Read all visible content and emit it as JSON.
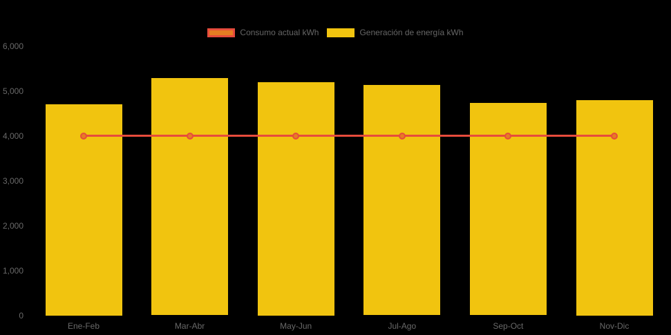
{
  "chart_data": {
    "type": "bar",
    "title": "",
    "categories": [
      "Ene-Feb",
      "Mar-Abr",
      "May-Jun",
      "Jul-Ago",
      "Sep-Oct",
      "Nov-Dic"
    ],
    "series": [
      {
        "name": "Consumo actual kWh",
        "type": "line",
        "values": [
          4000,
          4000,
          4000,
          4000,
          4000,
          4000
        ],
        "line_color": "#e74c3c",
        "point_fill_color": "#e67e22",
        "point_border_color": "#e74c3c"
      },
      {
        "name": "Generación de energía kWh",
        "type": "bar",
        "values": [
          4700,
          5280,
          5200,
          5130,
          4730,
          4800
        ],
        "color": "#f1c40f"
      }
    ],
    "y_axis": {
      "min": 0,
      "max": 6000,
      "tick_step": 1000,
      "tick_labels": [
        "0",
        "1,000",
        "2,000",
        "3,000",
        "4,000",
        "5,000",
        "6,000"
      ],
      "tick_values": [
        0,
        1000,
        2000,
        3000,
        4000,
        5000,
        6000
      ]
    },
    "grid": false,
    "legend_position": "top",
    "background_color": "#000000",
    "text_color": "#696969"
  }
}
